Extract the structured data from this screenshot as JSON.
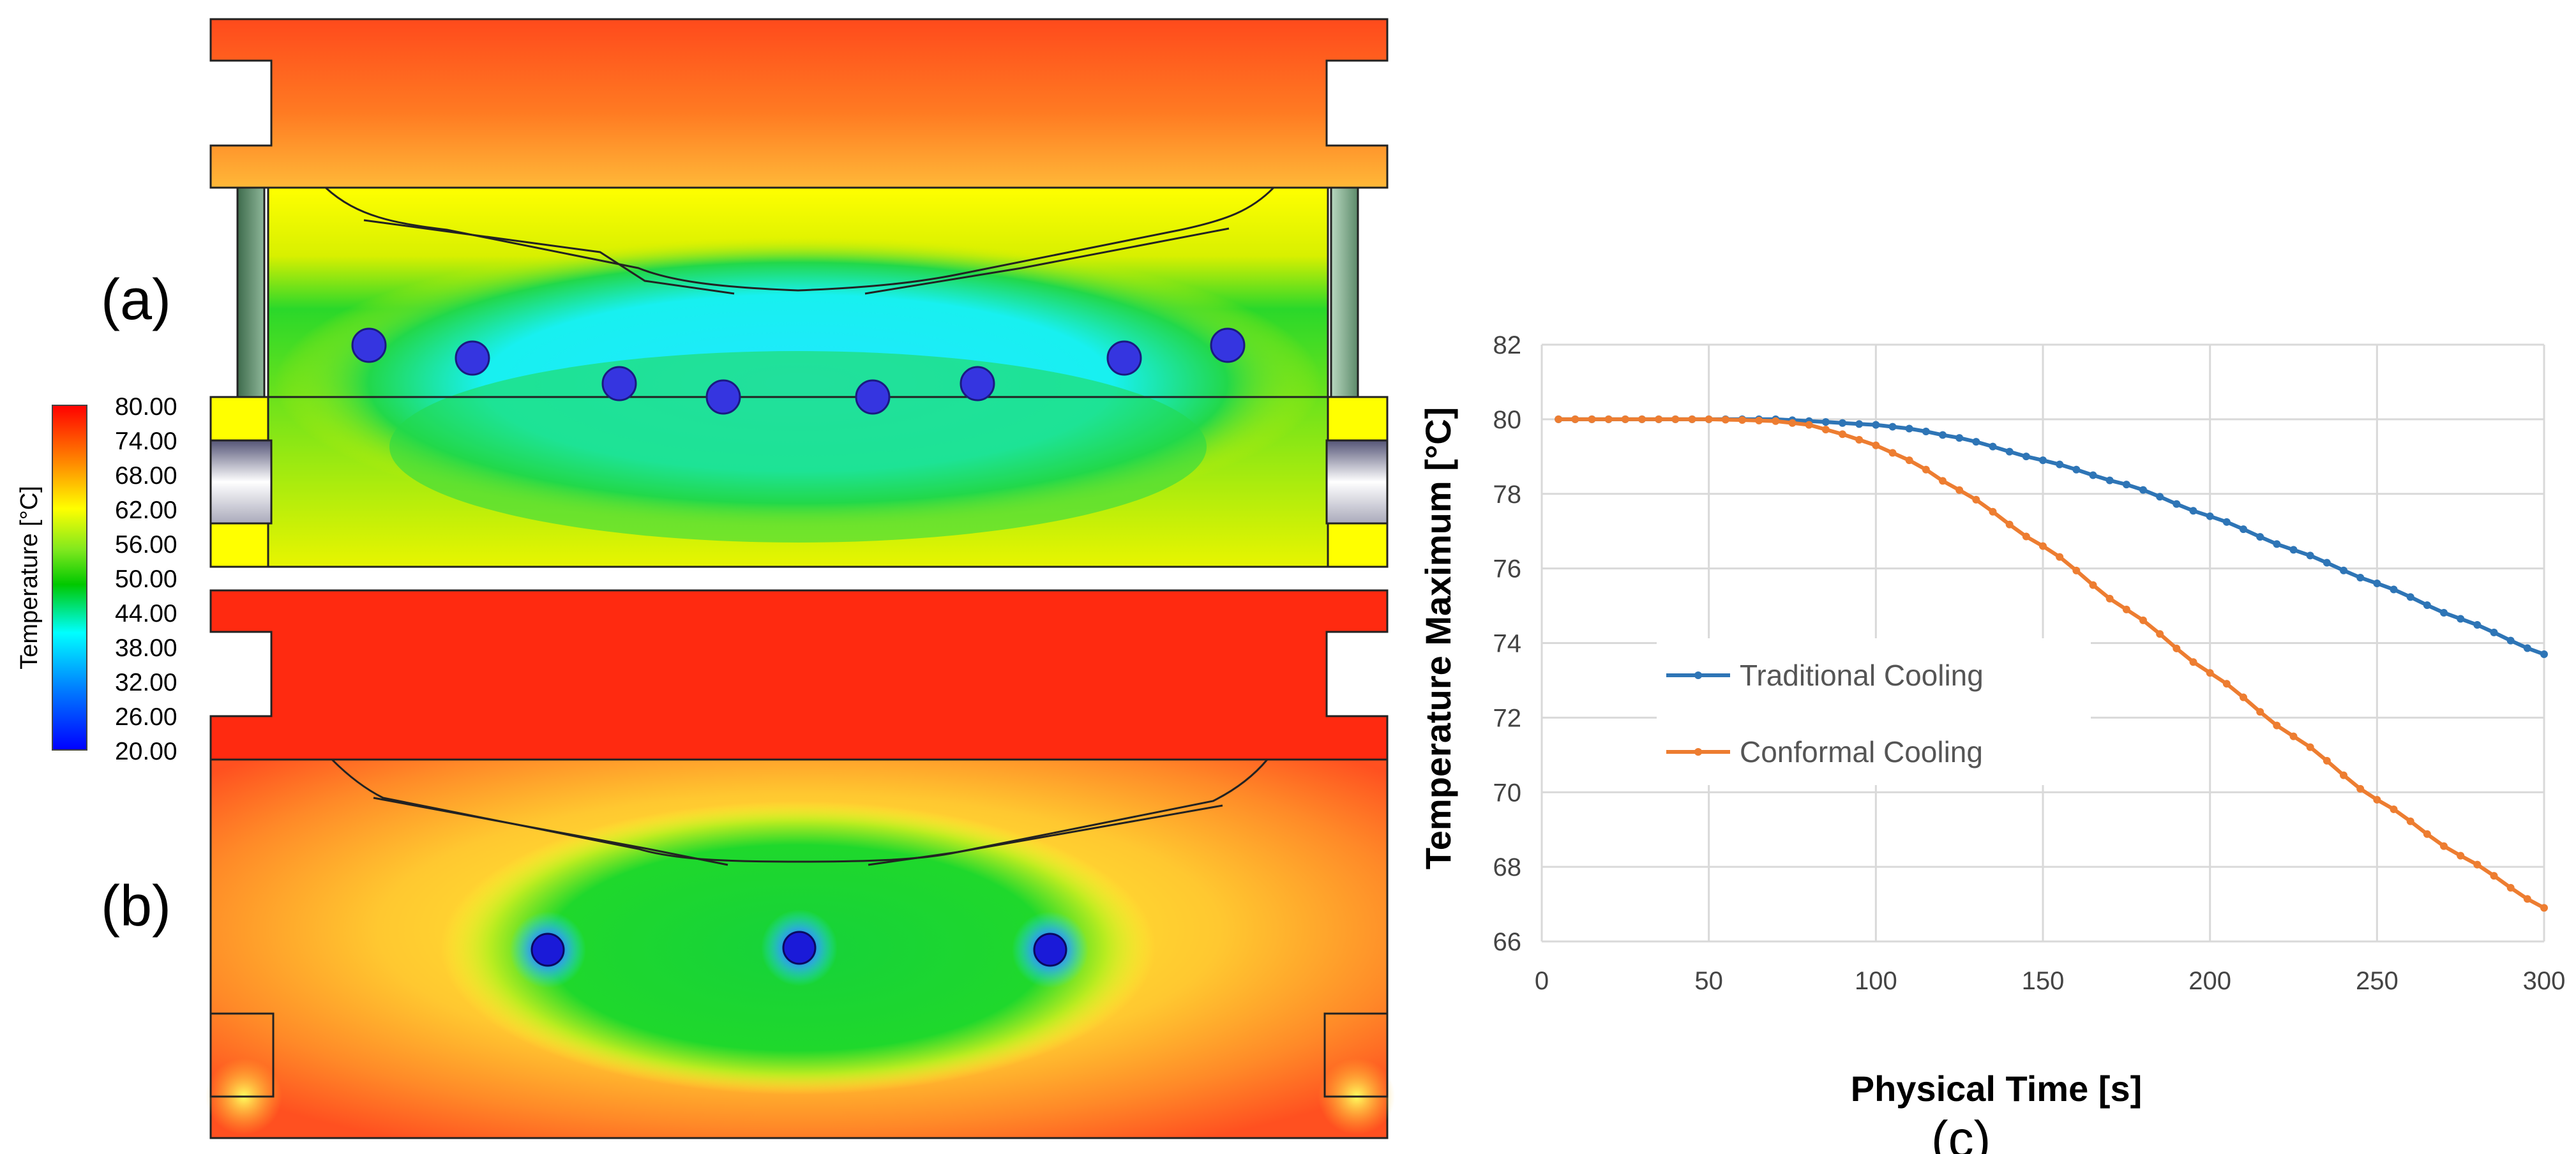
{
  "panels": {
    "a_label": "(a)",
    "b_label": "(b)",
    "c_label": "(c)"
  },
  "colors": {
    "traditional": "#2e75b6",
    "conformal": "#ed7d31",
    "grid": "#d9d9d9",
    "channel": "#2b2bd9"
  },
  "colorbar": {
    "title": "Temperature [°C]",
    "labels": [
      "80.00",
      "74.00",
      "68.00",
      "62.00",
      "56.00",
      "50.00",
      "44.00",
      "38.00",
      "32.00",
      "26.00",
      "20.00"
    ],
    "min": 20,
    "max": 80
  },
  "chart_data": {
    "type": "line",
    "title": "",
    "xlabel": "Physical Time [s]",
    "ylabel": "Temperature Maximum [°C]",
    "xlim": [
      0,
      300
    ],
    "ylim": [
      66,
      82
    ],
    "xticks": [
      0,
      50,
      100,
      150,
      200,
      250,
      300
    ],
    "yticks": [
      66,
      68,
      70,
      72,
      74,
      76,
      78,
      80,
      82
    ],
    "grid": true,
    "legend_position": "left-middle",
    "series": [
      {
        "name": "Traditional Cooling",
        "color": "#2e75b6",
        "x": [
          5,
          50,
          70,
          80,
          100,
          110,
          125,
          150,
          175,
          200,
          225,
          250,
          275,
          300
        ],
        "y": [
          80,
          80,
          80,
          79.95,
          79.85,
          79.75,
          79.5,
          78.9,
          78.25,
          77.4,
          76.5,
          75.6,
          74.65,
          73.7
        ]
      },
      {
        "name": "Conformal Cooling",
        "color": "#ed7d31",
        "x": [
          5,
          50,
          60,
          70,
          80,
          90,
          100,
          110,
          125,
          150,
          175,
          200,
          225,
          250,
          275,
          300
        ],
        "y": [
          80,
          80,
          79.98,
          79.95,
          79.85,
          79.6,
          79.3,
          78.9,
          78.1,
          76.6,
          74.9,
          73.2,
          71.5,
          69.8,
          68.3,
          66.9
        ]
      }
    ]
  }
}
